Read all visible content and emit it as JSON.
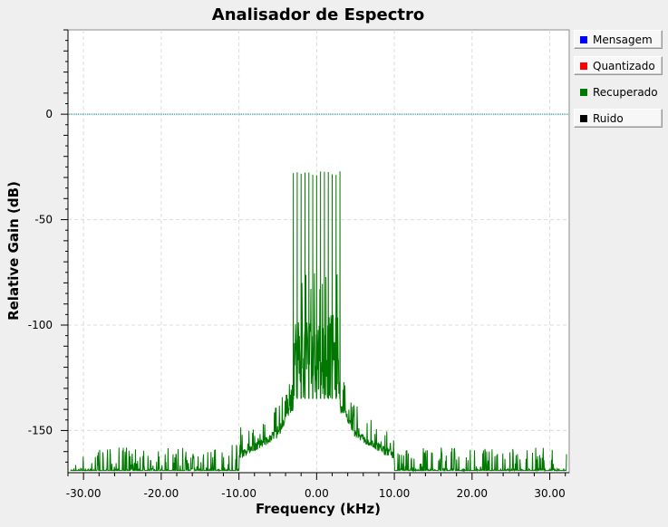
{
  "chart_data": {
    "type": "line",
    "title": "Analisador de Espectro",
    "xlabel": "Frequency (kHz)",
    "ylabel": "Relative Gain (dB)",
    "xlim": [
      -32,
      32.5
    ],
    "ylim": [
      -170,
      40
    ],
    "x_ticks": [
      -30,
      -20,
      -10,
      0,
      10,
      20,
      30
    ],
    "x_tick_labels": [
      "-30.00",
      "-20.00",
      "-10.00",
      "0.00",
      "10.00",
      "20.00",
      "30.00"
    ],
    "y_ticks": [
      0,
      -50,
      -100,
      -150
    ],
    "y_tick_labels": [
      "0",
      "-50",
      "-100",
      "-150"
    ],
    "grid": true,
    "legend_position": "right",
    "series": [
      {
        "name": "Mensagem",
        "color": "#0000ff",
        "visible": false,
        "boxed": true
      },
      {
        "name": "Quantizado",
        "color": "#ff0000",
        "visible": false,
        "boxed": true
      },
      {
        "name": "Recuperado",
        "color": "#007700",
        "visible": true,
        "boxed": false,
        "description_points": {
          "noise_floor_db": -168,
          "edge_peaks_db": -158,
          "shoulder": [
            [
              -10,
              -160
            ],
            [
              -5,
              -150
            ],
            [
              -3.5,
              -138
            ],
            [
              3.5,
              -138
            ],
            [
              5,
              -150
            ],
            [
              10,
              -160
            ]
          ],
          "band_kHz": [
            -3,
            3
          ],
          "band_body_db": [
            -135,
            -95
          ],
          "band_top_db": -83,
          "tone_peaks_db": -29,
          "tone_positions_kHz": [
            -3,
            -2.5,
            -2,
            -1.5,
            -1,
            -0.5,
            0,
            0.5,
            1,
            1.5,
            2,
            2.5,
            3
          ]
        }
      },
      {
        "name": "Ruido",
        "color": "#000000",
        "visible": false,
        "boxed": true
      }
    ],
    "reference_line": {
      "y": 0,
      "color": "#008b8b"
    }
  }
}
